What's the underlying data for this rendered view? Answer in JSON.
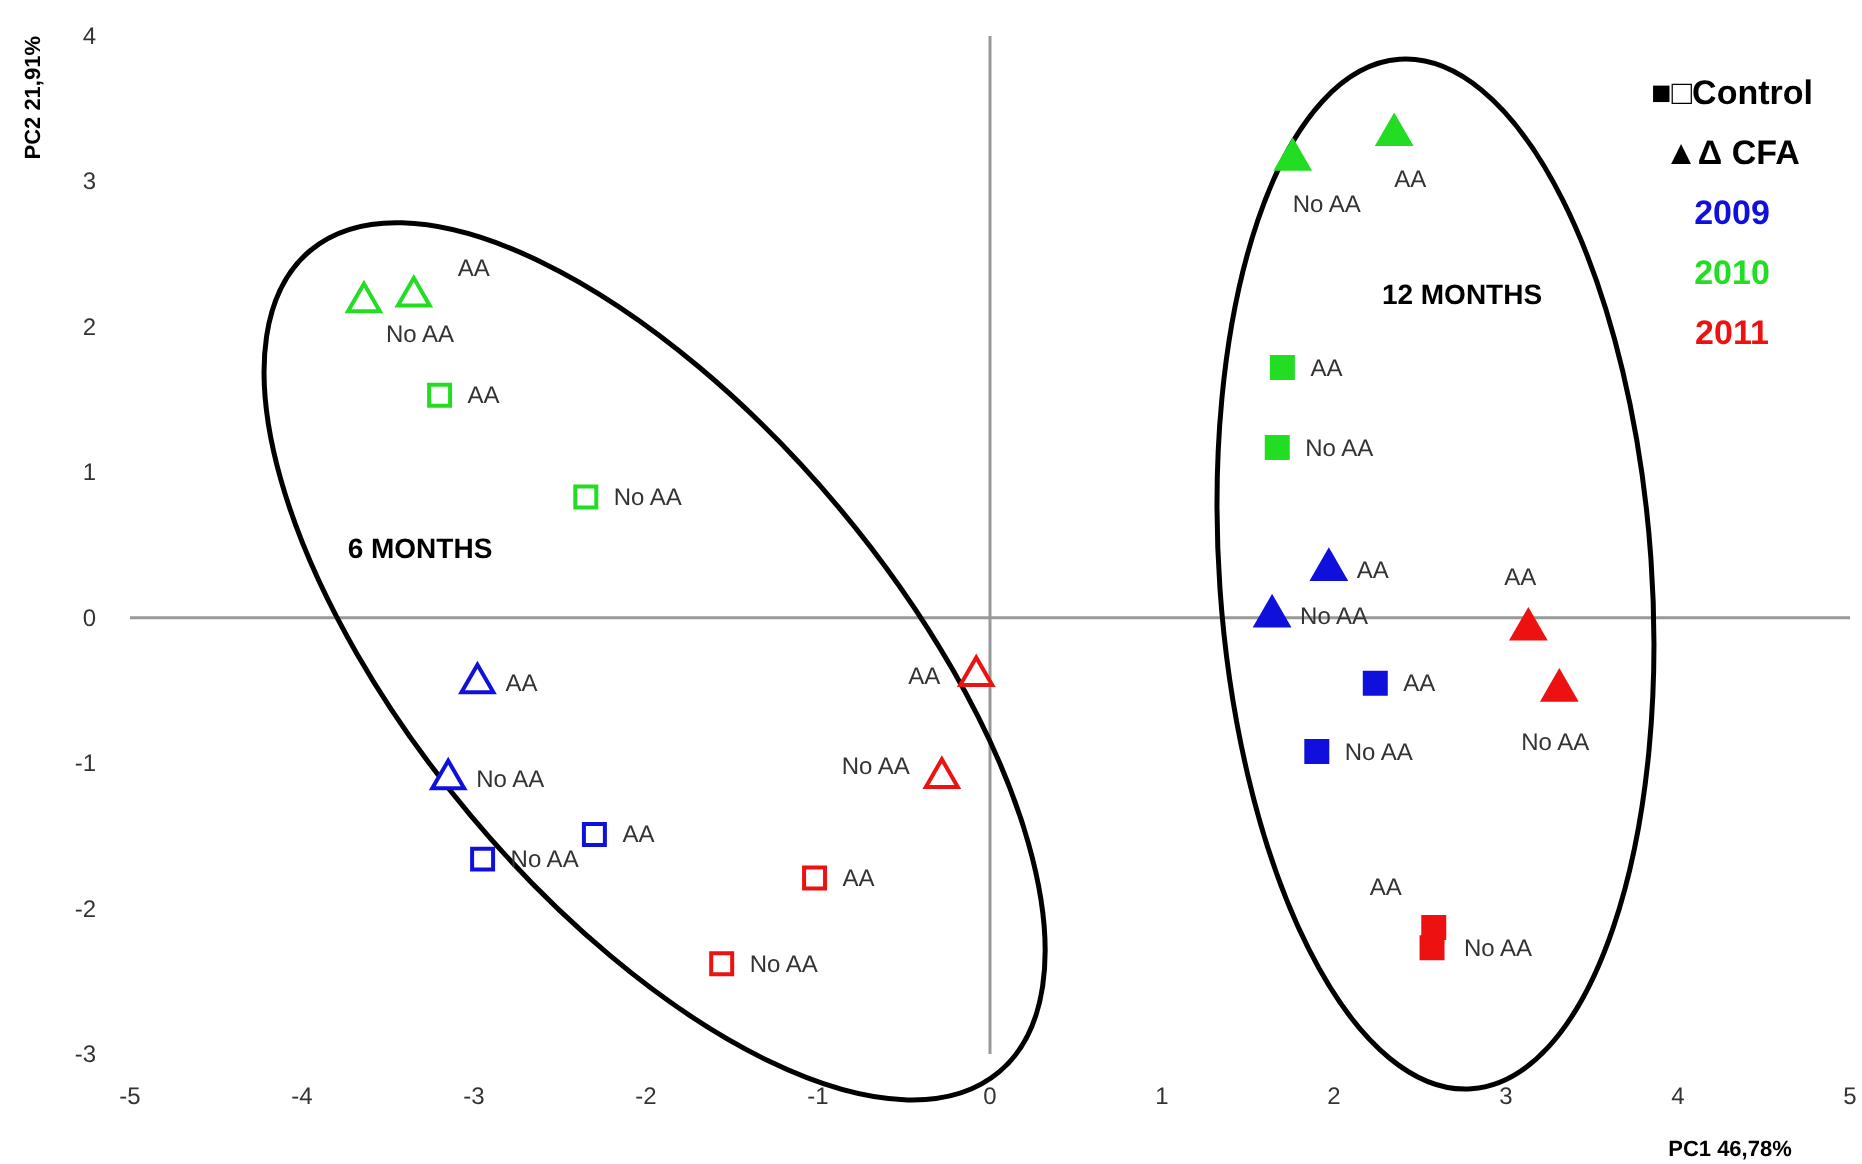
{
  "chart_data": {
    "type": "scatter",
    "xlabel": "PC1 46,78%",
    "ylabel": "PC2 21,91%",
    "xlim": [
      -5,
      5
    ],
    "xticks": [
      -5,
      -4,
      -3,
      -2,
      -1,
      0,
      1,
      2,
      3,
      4,
      5
    ],
    "ylim": [
      -3,
      4
    ],
    "yticks": [
      -3,
      -2,
      -1,
      0,
      1,
      2,
      3,
      4
    ],
    "legend": "top right",
    "annotations": [
      "6 MONTHS",
      "12 MONTHS",
      "■□Control",
      "▲Δ CFA"
    ],
    "series": [
      {
        "color": "#22dd22",
        "colors": [
          "#ffffff",
          "#ffffff"
        ],
        "marker": "triangle",
        "x": [
          -3.64,
          -3.35
        ],
        "values": [
          2.17,
          2.21
        ],
        "value_labels": [
          "No AA",
          "AA"
        ]
      },
      {
        "color": "#22dd22",
        "colors": [
          "#ffffff",
          "#ffffff"
        ],
        "marker": "square",
        "x": [
          -3.2,
          -2.35
        ],
        "values": [
          1.53,
          0.83
        ],
        "value_labels": [
          "AA",
          "No AA"
        ]
      },
      {
        "color": "#1010dd",
        "colors": [
          "#ffffff",
          "#ffffff"
        ],
        "marker": "triangle",
        "x": [
          -2.98,
          -3.15
        ],
        "values": [
          -0.45,
          -1.11
        ],
        "value_labels": [
          "AA",
          "No AA"
        ]
      },
      {
        "color": "#1010dd",
        "colors": [
          "#ffffff",
          "#ffffff"
        ],
        "marker": "square",
        "x": [
          -2.3,
          -2.95
        ],
        "values": [
          -1.49,
          -1.66
        ],
        "value_labels": [
          "AA",
          "No AA"
        ]
      },
      {
        "color": "#ee1111",
        "colors": [
          "#ffffff",
          "#ffffff"
        ],
        "marker": "triangle",
        "x": [
          -0.08,
          -0.28
        ],
        "values": [
          -0.4,
          -1.1
        ],
        "value_labels": [
          "AA",
          "No AA"
        ]
      },
      {
        "color": "#ee1111",
        "colors": [
          "#ffffff",
          "#ffffff"
        ],
        "marker": "square",
        "x": [
          -1.02,
          -1.56
        ],
        "values": [
          -1.79,
          -2.38
        ],
        "value_labels": [
          "AA",
          "No AA"
        ]
      },
      {
        "color": "#22dd22",
        "colors": [
          "#22dd22",
          "#22dd22"
        ],
        "marker": "triangle",
        "x": [
          1.76,
          2.35
        ],
        "values": [
          3.15,
          3.32
        ],
        "value_labels": [
          "No AA",
          "AA"
        ]
      },
      {
        "name": "2010",
        "color": "#22dd22",
        "colors": [
          "#22dd22",
          "#22dd22"
        ],
        "marker": "square",
        "x": [
          1.7,
          1.67
        ],
        "values": [
          1.72,
          1.17
        ],
        "value_labels": [
          "AA",
          "No AA"
        ]
      },
      {
        "name": "2009",
        "color": "#1010dd",
        "colors": [
          "#1010dd",
          "#1010dd"
        ],
        "marker": "triangle",
        "x": [
          1.97,
          1.64
        ],
        "values": [
          0.33,
          0.01
        ],
        "value_labels": [
          "AA",
          "No AA"
        ]
      },
      {
        "color": "#1010dd",
        "colors": [
          "#1010dd",
          "#1010dd"
        ],
        "marker": "square",
        "x": [
          2.24,
          1.9
        ],
        "values": [
          -0.45,
          -0.92
        ],
        "value_labels": [
          "AA",
          "No AA"
        ]
      },
      {
        "name": "2011",
        "color": "#ee1111",
        "colors": [
          "#ee1111",
          "#ee1111"
        ],
        "marker": "triangle",
        "x": [
          3.13,
          3.31
        ],
        "values": [
          -0.08,
          -0.5
        ],
        "value_labels": [
          "AA",
          "No AA"
        ]
      },
      {
        "color": "#ee1111",
        "colors": [
          "#ee1111",
          "#ee1111"
        ],
        "marker": "square",
        "x": [
          2.58,
          2.57
        ],
        "values": [
          -2.13,
          -2.27
        ],
        "value_labels": [
          "AA",
          "No AA"
        ]
      }
    ]
  }
}
